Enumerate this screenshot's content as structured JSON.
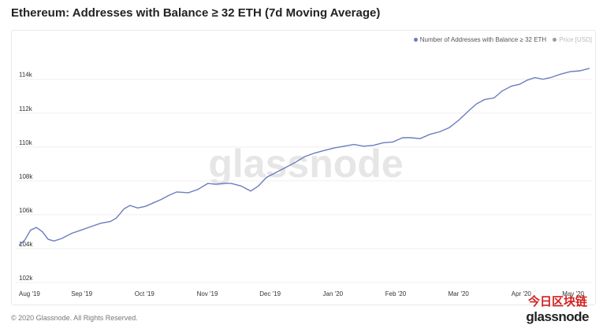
{
  "header": {
    "title": "Ethereum: Addresses with Balance ≥ 32 ETH (7d Moving Average)"
  },
  "legend": {
    "series_label": "Number of Addresses with Balance ≥ 32 ETH",
    "series_color": "#6a7dbf",
    "price_label": "Price [USD]",
    "price_color": "#c8c8c8"
  },
  "watermark": "glassnode",
  "footer": {
    "copyright": "© 2020 Glassnode. All Rights Reserved.",
    "brand": "glassnode"
  },
  "stamp": "今日区块链",
  "chart_data": {
    "type": "line",
    "title": "Ethereum: Addresses with Balance ≥ 32 ETH (7d Moving Average)",
    "x_labels": [
      "Aug '19",
      "Sep '19",
      "Oct '19",
      "Nov '19",
      "Dec '19",
      "Jan '20",
      "Feb '20",
      "Mar '20",
      "Apr '20",
      "May '20"
    ],
    "y_ticks": [
      102000,
      104000,
      106000,
      108000,
      110000,
      112000,
      114000
    ],
    "y_tick_labels": [
      "102k",
      "104k",
      "106k",
      "108k",
      "110k",
      "112k",
      "114k"
    ],
    "ylim": [
      102000,
      115800
    ],
    "xlim": [
      "2019-08-01",
      "2020-05-20"
    ],
    "grid": true,
    "legend_position": "top-right",
    "series": [
      {
        "name": "Number of Addresses with Balance ≥ 32 ETH",
        "color": "#6a7dbf",
        "points": [
          [
            "2019-08-01",
            104200
          ],
          [
            "2019-08-04",
            104500
          ],
          [
            "2019-08-07",
            105100
          ],
          [
            "2019-08-10",
            105250
          ],
          [
            "2019-08-13",
            105000
          ],
          [
            "2019-08-16",
            104550
          ],
          [
            "2019-08-19",
            104450
          ],
          [
            "2019-08-23",
            104600
          ],
          [
            "2019-08-28",
            104900
          ],
          [
            "2019-09-02",
            105100
          ],
          [
            "2019-09-07",
            105300
          ],
          [
            "2019-09-12",
            105500
          ],
          [
            "2019-09-17",
            105600
          ],
          [
            "2019-09-20",
            105800
          ],
          [
            "2019-09-24",
            106350
          ],
          [
            "2019-09-27",
            106550
          ],
          [
            "2019-10-01",
            106400
          ],
          [
            "2019-10-05",
            106500
          ],
          [
            "2019-10-09",
            106700
          ],
          [
            "2019-10-13",
            106900
          ],
          [
            "2019-10-17",
            107150
          ],
          [
            "2019-10-21",
            107350
          ],
          [
            "2019-10-27",
            107300
          ],
          [
            "2019-11-01",
            107500
          ],
          [
            "2019-11-06",
            107850
          ],
          [
            "2019-11-10",
            107800
          ],
          [
            "2019-11-14",
            107850
          ],
          [
            "2019-11-18",
            107850
          ],
          [
            "2019-11-23",
            107700
          ],
          [
            "2019-11-28",
            107400
          ],
          [
            "2019-12-02",
            107700
          ],
          [
            "2019-12-06",
            108200
          ],
          [
            "2019-12-11",
            108500
          ],
          [
            "2019-12-16",
            108800
          ],
          [
            "2019-12-21",
            109100
          ],
          [
            "2019-12-26",
            109450
          ],
          [
            "2019-12-31",
            109650
          ],
          [
            "2020-01-05",
            109800
          ],
          [
            "2020-01-10",
            109950
          ],
          [
            "2020-01-15",
            110050
          ],
          [
            "2020-01-20",
            110150
          ],
          [
            "2020-01-25",
            110050
          ],
          [
            "2020-01-30",
            110100
          ],
          [
            "2020-02-04",
            110250
          ],
          [
            "2020-02-09",
            110300
          ],
          [
            "2020-02-14",
            110550
          ],
          [
            "2020-02-18",
            110550
          ],
          [
            "2020-02-23",
            110500
          ],
          [
            "2020-02-28",
            110750
          ],
          [
            "2020-03-04",
            110900
          ],
          [
            "2020-03-09",
            111150
          ],
          [
            "2020-03-14",
            111600
          ],
          [
            "2020-03-19",
            112150
          ],
          [
            "2020-03-23",
            112550
          ],
          [
            "2020-03-27",
            112800
          ],
          [
            "2020-04-01",
            112900
          ],
          [
            "2020-04-05",
            113300
          ],
          [
            "2020-04-10",
            113600
          ],
          [
            "2020-04-14",
            113700
          ],
          [
            "2020-04-18",
            113950
          ],
          [
            "2020-04-22",
            114100
          ],
          [
            "2020-04-26",
            114000
          ],
          [
            "2020-04-30",
            114100
          ],
          [
            "2020-05-05",
            114300
          ],
          [
            "2020-05-10",
            114450
          ],
          [
            "2020-05-15",
            114500
          ],
          [
            "2020-05-20",
            114650
          ]
        ]
      }
    ]
  }
}
